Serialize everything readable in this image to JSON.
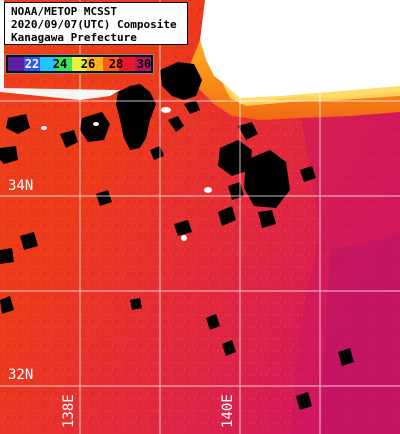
{
  "map": {
    "title_lines": [
      "NOAA/METOP MCSST",
      "2020/09/07(UTC) Composite",
      "Kanagawa Prefecture"
    ],
    "colorbar": {
      "ticks": [
        "22",
        "24",
        "26",
        "28",
        "30"
      ],
      "gradient_colors": [
        "#5a1fa0",
        "#2f55ff",
        "#22c4ff",
        "#3fe35a",
        "#e8f23a",
        "#ffb21c",
        "#ff5a12",
        "#e8182c",
        "#c0125e"
      ]
    },
    "latitude_labels": [
      "34N",
      "32N"
    ],
    "longitude_labels": [
      "138E",
      "140E"
    ],
    "colors": {
      "sea_warm": "#e9391a",
      "sea_hot": "#d9205a",
      "sea_orange": "#f06a12",
      "land": "#ffffff",
      "land_coast": "#ffd04a",
      "cloud_mask": "#000000",
      "grid": "#ffffff"
    }
  }
}
